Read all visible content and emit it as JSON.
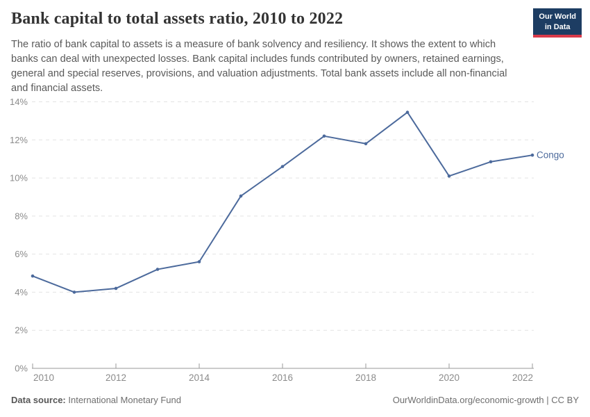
{
  "header": {
    "title": "Bank capital to total assets ratio, 2010 to 2022",
    "logo": {
      "line1": "Our World",
      "line2": "in Data"
    }
  },
  "subtitle": "The ratio of bank capital to assets is a measure of bank solvency and resiliency. It shows the extent to which banks can deal with unexpected losses. Bank capital includes funds contributed by owners, retained earnings, general and special reserves, provisions, and valuation adjustments. Total bank assets include all non-financial and financial assets.",
  "chart_data": {
    "type": "line",
    "title": "Bank capital to total assets ratio, 2010 to 2022",
    "xlabel": "",
    "ylabel": "",
    "ylim": [
      0,
      14
    ],
    "xlim": [
      2010,
      2022
    ],
    "grid": "horizontal-dashed",
    "legend_position": "end-of-line",
    "x": [
      2010,
      2011,
      2012,
      2013,
      2014,
      2015,
      2016,
      2017,
      2018,
      2019,
      2020,
      2021,
      2022
    ],
    "series": [
      {
        "name": "Congo",
        "color": "#4c6a9c",
        "values": [
          4.85,
          4.0,
          4.2,
          5.2,
          5.6,
          9.05,
          10.6,
          12.2,
          11.8,
          13.45,
          10.1,
          10.85,
          11.2
        ]
      }
    ],
    "y_axis": {
      "ticks": [
        {
          "value": 0,
          "label": "0%"
        },
        {
          "value": 2,
          "label": "2%"
        },
        {
          "value": 4,
          "label": "4%"
        },
        {
          "value": 6,
          "label": "6%"
        },
        {
          "value": 8,
          "label": "8%"
        },
        {
          "value": 10,
          "label": "10%"
        },
        {
          "value": 12,
          "label": "12%"
        },
        {
          "value": 14,
          "label": "14%"
        }
      ]
    },
    "x_axis": {
      "ticks": [
        {
          "value": 2010,
          "label": "2010"
        },
        {
          "value": 2012,
          "label": "2012"
        },
        {
          "value": 2014,
          "label": "2014"
        },
        {
          "value": 2016,
          "label": "2016"
        },
        {
          "value": 2018,
          "label": "2018"
        },
        {
          "value": 2020,
          "label": "2020"
        },
        {
          "value": 2022,
          "label": "2022"
        }
      ]
    },
    "colors": {
      "gridline": "#e2e2e2",
      "axis_line": "#999999",
      "tick_label": "#8b8b8b"
    }
  },
  "footer": {
    "datasource_label": "Data source:",
    "datasource_value": "International Monetary Fund",
    "attribution": "OurWorldinData.org/economic-growth | CC BY"
  }
}
